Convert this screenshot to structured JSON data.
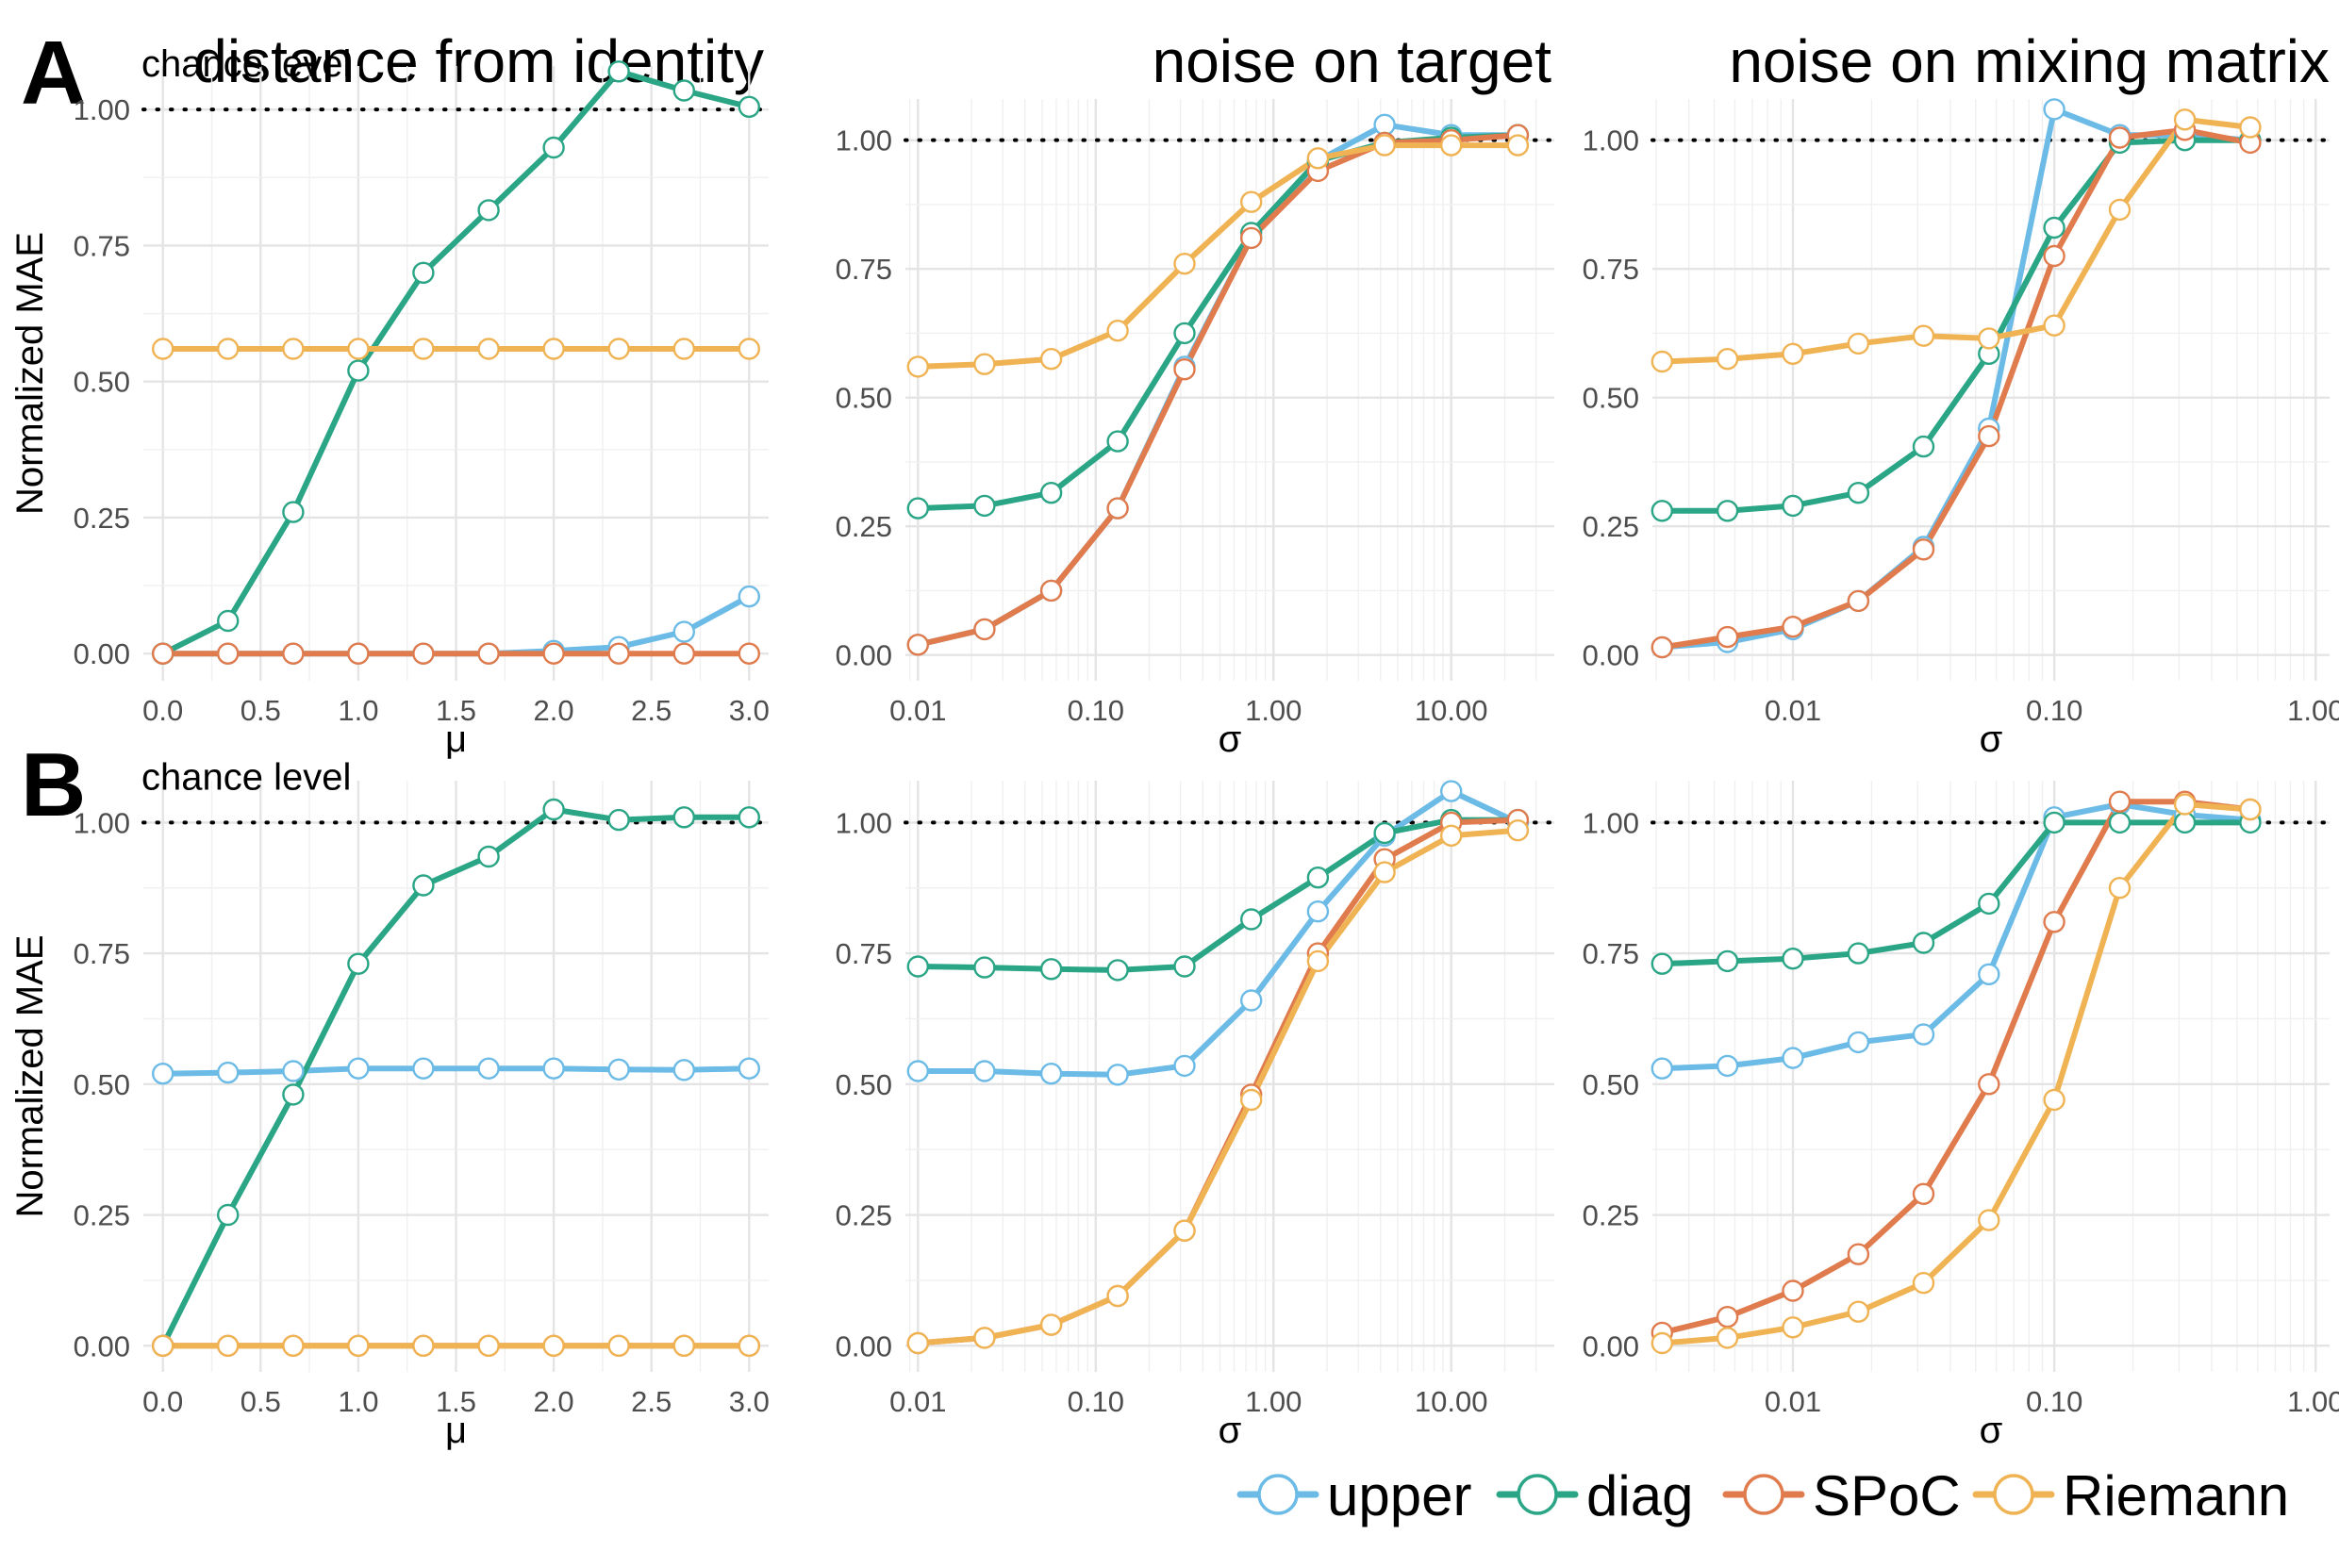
{
  "panel_labels": {
    "a": "A",
    "b": "B"
  },
  "column_titles": [
    "distance from identity",
    "noise on target",
    "noise on mixing matrix"
  ],
  "y_axis_label": "Normalized MAE",
  "chance_label": "chance level",
  "x_labels": {
    "mu": "μ",
    "sigma": "σ"
  },
  "colors": {
    "upper": "#6bbbe6",
    "diag": "#2aa585",
    "SPoC": "#e07b4d",
    "Riemann": "#f0b354"
  },
  "legend": [
    {
      "key": "upper",
      "label": "upper"
    },
    {
      "key": "diag",
      "label": "diag"
    },
    {
      "key": "SPoC",
      "label": "SPoC"
    },
    {
      "key": "Riemann",
      "label": "Riemann"
    }
  ],
  "chart_data": [
    {
      "type": "line",
      "row": "A",
      "title": "distance from identity",
      "xlabel": "μ",
      "ylabel": "Normalized MAE",
      "xscale": "linear",
      "xlim": [
        -0.1,
        3.1
      ],
      "ylim": [
        -0.05,
        1.08
      ],
      "xticks": [
        0,
        0.5,
        1,
        1.5,
        2,
        2.5,
        3
      ],
      "xtick_labels": [
        "0.0",
        "0.5",
        "1.0",
        "1.5",
        "2.0",
        "2.5",
        "3.0"
      ],
      "yticks": [
        0,
        0.25,
        0.5,
        0.75,
        1
      ],
      "ytick_labels": [
        "0.00",
        "0.25",
        "0.50",
        "0.75",
        "1.00"
      ],
      "reference_line": 1.0,
      "x": [
        0,
        0.333,
        0.667,
        1.0,
        1.333,
        1.667,
        2.0,
        2.333,
        2.667,
        3.0
      ],
      "series": [
        {
          "name": "upper",
          "values": [
            0,
            0,
            0,
            0,
            0,
            0,
            0.005,
            0.012,
            0.04,
            0.105
          ]
        },
        {
          "name": "diag",
          "values": [
            0,
            0.06,
            0.26,
            0.52,
            0.7,
            0.815,
            0.93,
            1.07,
            1.035,
            1.005
          ]
        },
        {
          "name": "SPoC",
          "values": [
            0,
            0,
            0,
            0,
            0,
            0,
            0,
            0,
            0,
            0
          ]
        },
        {
          "name": "Riemann",
          "values": [
            0.56,
            0.56,
            0.56,
            0.56,
            0.56,
            0.56,
            0.56,
            0.56,
            0.56,
            0.56
          ]
        }
      ]
    },
    {
      "type": "line",
      "row": "A",
      "title": "noise on target",
      "xlabel": "σ",
      "ylabel": "",
      "xscale": "log",
      "xlim": [
        0.0085,
        38
      ],
      "ylim": [
        -0.05,
        1.08
      ],
      "xticks": [
        0.01,
        0.1,
        1,
        10
      ],
      "xtick_labels": [
        "0.01",
        "0.10",
        "1.00",
        "10.00"
      ],
      "yticks": [
        0,
        0.25,
        0.5,
        0.75,
        1
      ],
      "ytick_labels": [
        "0.00",
        "0.25",
        "0.50",
        "0.75",
        "1.00"
      ],
      "reference_line": 1.0,
      "x": [
        0.01,
        0.0237,
        0.0562,
        0.133,
        0.316,
        0.75,
        1.78,
        4.22,
        10,
        23.7
      ],
      "series": [
        {
          "name": "upper",
          "values": [
            0.02,
            0.05,
            0.125,
            0.285,
            0.56,
            0.81,
            0.96,
            1.03,
            1.01,
            1.01
          ]
        },
        {
          "name": "diag",
          "values": [
            0.285,
            0.29,
            0.315,
            0.415,
            0.625,
            0.82,
            0.96,
            0.995,
            1.005,
            1.01
          ]
        },
        {
          "name": "SPoC",
          "values": [
            0.02,
            0.05,
            0.125,
            0.285,
            0.555,
            0.81,
            0.94,
            0.995,
            1.0,
            1.01
          ]
        },
        {
          "name": "Riemann",
          "values": [
            0.56,
            0.565,
            0.575,
            0.63,
            0.76,
            0.88,
            0.965,
            0.99,
            0.99,
            0.99
          ]
        }
      ]
    },
    {
      "type": "line",
      "row": "A",
      "title": "noise on mixing matrix",
      "xlabel": "σ",
      "ylabel": "",
      "xscale": "log",
      "xlim": [
        0.0029,
        1.13
      ],
      "ylim": [
        -0.05,
        1.08
      ],
      "xticks": [
        0.01,
        0.1,
        1
      ],
      "xtick_labels": [
        "0.01",
        "0.10",
        "1.00"
      ],
      "yticks": [
        0,
        0.25,
        0.5,
        0.75,
        1
      ],
      "ytick_labels": [
        "0.00",
        "0.25",
        "0.50",
        "0.75",
        "1.00"
      ],
      "reference_line": 1.0,
      "x": [
        0.00316,
        0.00562,
        0.01,
        0.0178,
        0.0316,
        0.0562,
        0.1,
        0.178,
        0.316,
        0.562
      ],
      "series": [
        {
          "name": "upper",
          "values": [
            0.015,
            0.025,
            0.05,
            0.105,
            0.21,
            0.44,
            1.06,
            1.01,
            1.01,
            1.0
          ]
        },
        {
          "name": "diag",
          "values": [
            0.28,
            0.28,
            0.29,
            0.315,
            0.405,
            0.585,
            0.83,
            0.995,
            1.0,
            1.0
          ]
        },
        {
          "name": "SPoC",
          "values": [
            0.015,
            0.035,
            0.055,
            0.105,
            0.205,
            0.425,
            0.775,
            1.005,
            1.02,
            0.995
          ]
        },
        {
          "name": "Riemann",
          "values": [
            0.57,
            0.575,
            0.585,
            0.605,
            0.62,
            0.615,
            0.64,
            0.865,
            1.04,
            1.025
          ]
        }
      ]
    },
    {
      "type": "line",
      "row": "B",
      "title": "distance from identity",
      "xlabel": "μ",
      "ylabel": "Normalized MAE",
      "xscale": "linear",
      "xlim": [
        -0.1,
        3.1
      ],
      "ylim": [
        -0.05,
        1.08
      ],
      "xticks": [
        0,
        0.5,
        1,
        1.5,
        2,
        2.5,
        3
      ],
      "xtick_labels": [
        "0.0",
        "0.5",
        "1.0",
        "1.5",
        "2.0",
        "2.5",
        "3.0"
      ],
      "yticks": [
        0,
        0.25,
        0.5,
        0.75,
        1
      ],
      "ytick_labels": [
        "0.00",
        "0.25",
        "0.50",
        "0.75",
        "1.00"
      ],
      "reference_line": 1.0,
      "x": [
        0,
        0.333,
        0.667,
        1.0,
        1.333,
        1.667,
        2.0,
        2.333,
        2.667,
        3.0
      ],
      "series": [
        {
          "name": "upper",
          "values": [
            0.52,
            0.522,
            0.525,
            0.53,
            0.53,
            0.53,
            0.53,
            0.528,
            0.527,
            0.53
          ]
        },
        {
          "name": "diag",
          "values": [
            0,
            0.25,
            0.48,
            0.73,
            0.88,
            0.935,
            1.025,
            1.005,
            1.01,
            1.01
          ]
        },
        {
          "name": "SPoC",
          "values": [
            0,
            0,
            0,
            0,
            0,
            0,
            0,
            0,
            0,
            0
          ]
        },
        {
          "name": "Riemann",
          "values": [
            0,
            0,
            0,
            0,
            0,
            0,
            0,
            0,
            0,
            0
          ]
        }
      ]
    },
    {
      "type": "line",
      "row": "B",
      "title": "noise on target",
      "xlabel": "σ",
      "ylabel": "",
      "xscale": "log",
      "xlim": [
        0.0085,
        38
      ],
      "ylim": [
        -0.05,
        1.08
      ],
      "xticks": [
        0.01,
        0.1,
        1,
        10
      ],
      "xtick_labels": [
        "0.01",
        "0.10",
        "1.00",
        "10.00"
      ],
      "yticks": [
        0,
        0.25,
        0.5,
        0.75,
        1
      ],
      "ytick_labels": [
        "0.00",
        "0.25",
        "0.50",
        "0.75",
        "1.00"
      ],
      "reference_line": 1.0,
      "x": [
        0.01,
        0.0237,
        0.0562,
        0.133,
        0.316,
        0.75,
        1.78,
        4.22,
        10,
        23.7
      ],
      "series": [
        {
          "name": "upper",
          "values": [
            0.525,
            0.525,
            0.52,
            0.518,
            0.535,
            0.66,
            0.83,
            0.975,
            1.06,
            1.0
          ]
        },
        {
          "name": "diag",
          "values": [
            0.725,
            0.723,
            0.72,
            0.718,
            0.725,
            0.815,
            0.895,
            0.98,
            1.005,
            1.005
          ]
        },
        {
          "name": "SPoC",
          "values": [
            0.005,
            0.015,
            0.04,
            0.095,
            0.22,
            0.48,
            0.75,
            0.93,
            1.0,
            1.005
          ]
        },
        {
          "name": "Riemann",
          "values": [
            0.005,
            0.015,
            0.04,
            0.095,
            0.22,
            0.47,
            0.735,
            0.905,
            0.975,
            0.985
          ]
        }
      ]
    },
    {
      "type": "line",
      "row": "B",
      "title": "noise on mixing matrix",
      "xlabel": "σ",
      "ylabel": "",
      "xscale": "log",
      "xlim": [
        0.0029,
        1.13
      ],
      "ylim": [
        -0.05,
        1.08
      ],
      "xticks": [
        0.01,
        0.1,
        1
      ],
      "xtick_labels": [
        "0.01",
        "0.10",
        "1.00"
      ],
      "yticks": [
        0,
        0.25,
        0.5,
        0.75,
        1
      ],
      "ytick_labels": [
        "0.00",
        "0.25",
        "0.50",
        "0.75",
        "1.00"
      ],
      "reference_line": 1.0,
      "x": [
        0.00316,
        0.00562,
        0.01,
        0.0178,
        0.0316,
        0.0562,
        0.1,
        0.178,
        0.316,
        0.562
      ],
      "series": [
        {
          "name": "upper",
          "values": [
            0.53,
            0.535,
            0.55,
            0.58,
            0.595,
            0.71,
            1.01,
            1.035,
            1.015,
            1.005
          ]
        },
        {
          "name": "diag",
          "values": [
            0.73,
            0.735,
            0.74,
            0.75,
            0.77,
            0.845,
            1.0,
            1.0,
            1.0,
            1.0
          ]
        },
        {
          "name": "SPoC",
          "values": [
            0.025,
            0.055,
            0.105,
            0.175,
            0.29,
            0.5,
            0.81,
            1.04,
            1.04,
            1.025
          ]
        },
        {
          "name": "Riemann",
          "values": [
            0.005,
            0.015,
            0.035,
            0.065,
            0.12,
            0.24,
            0.47,
            0.875,
            1.035,
            1.025
          ]
        }
      ]
    }
  ]
}
